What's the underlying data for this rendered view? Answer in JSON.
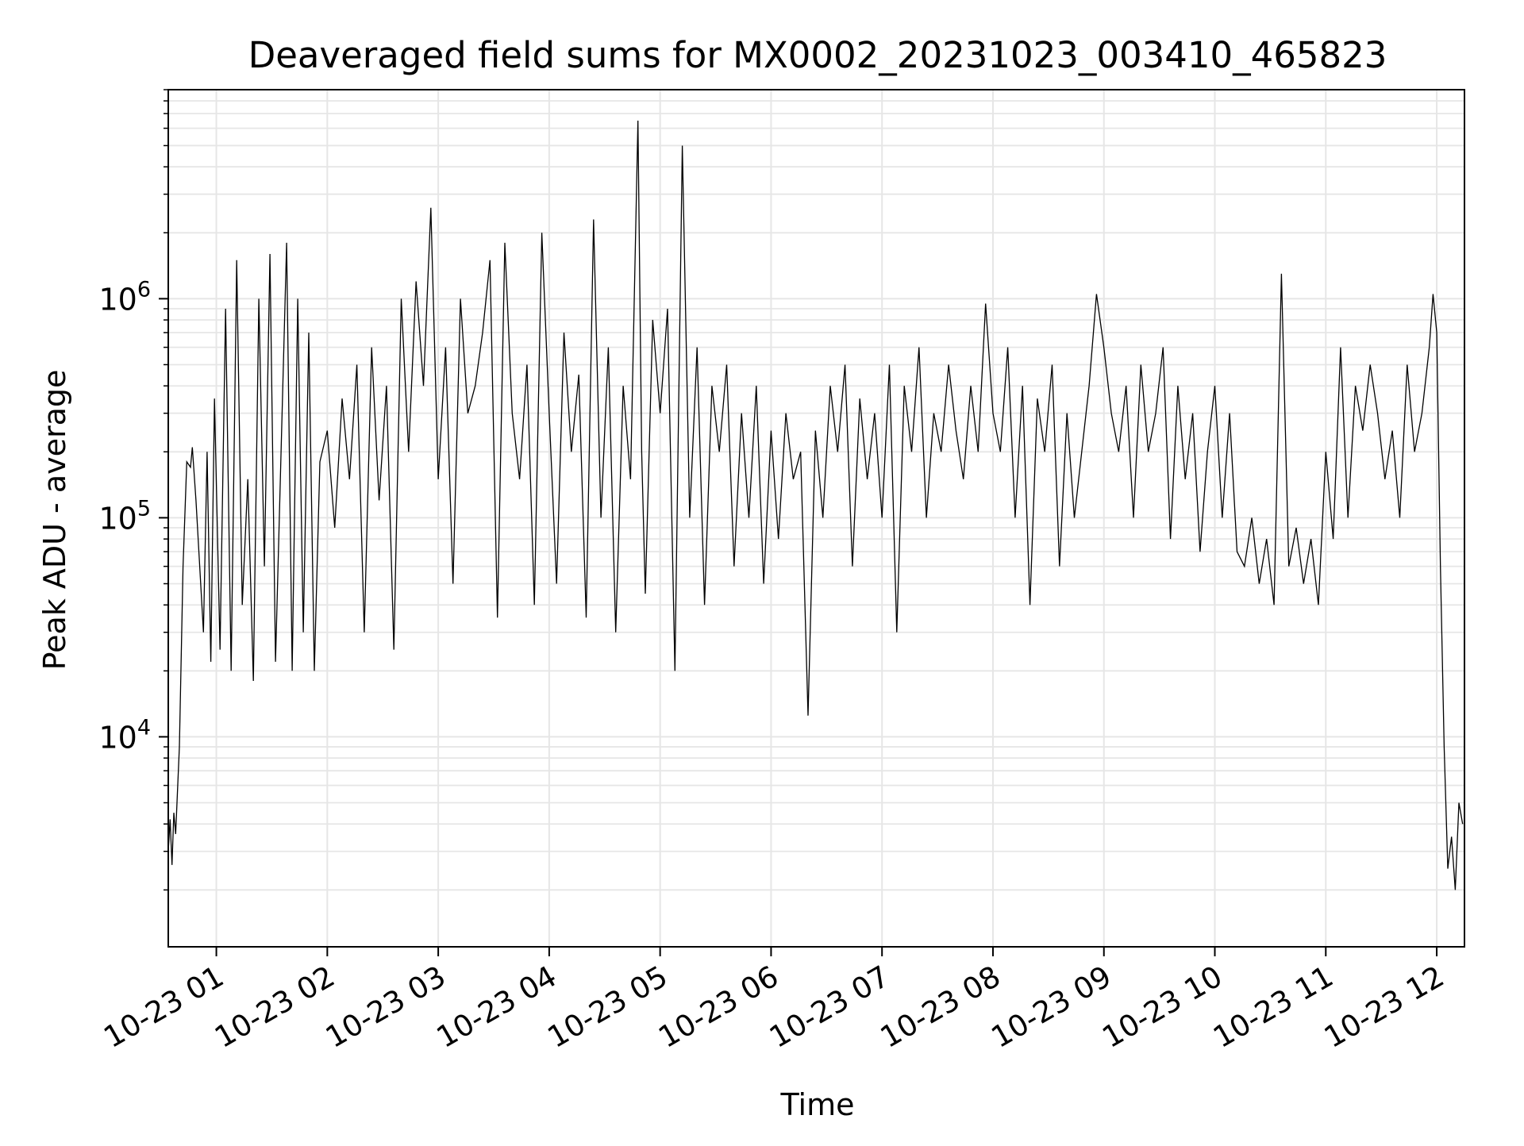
{
  "chart_data": {
    "type": "line",
    "title": "Deaveraged field sums for MX0002_20231023_003410_465823",
    "xlabel": "Time",
    "ylabel": "Peak ADU - average",
    "yscale": "log",
    "ylim": [
      1100,
      9000000
    ],
    "xlim": [
      "2023-10-23T00:34:00",
      "2023-10-23T12:15:00"
    ],
    "grid": true,
    "line_color": "#000000",
    "grid_color": "#e6e6e6",
    "x_ticks": [
      {
        "value": "2023-10-23T01:00:00",
        "label": "10-23 01"
      },
      {
        "value": "2023-10-23T02:00:00",
        "label": "10-23 02"
      },
      {
        "value": "2023-10-23T03:00:00",
        "label": "10-23 03"
      },
      {
        "value": "2023-10-23T04:00:00",
        "label": "10-23 04"
      },
      {
        "value": "2023-10-23T05:00:00",
        "label": "10-23 05"
      },
      {
        "value": "2023-10-23T06:00:00",
        "label": "10-23 06"
      },
      {
        "value": "2023-10-23T07:00:00",
        "label": "10-23 07"
      },
      {
        "value": "2023-10-23T08:00:00",
        "label": "10-23 08"
      },
      {
        "value": "2023-10-23T09:00:00",
        "label": "10-23 09"
      },
      {
        "value": "2023-10-23T10:00:00",
        "label": "10-23 10"
      },
      {
        "value": "2023-10-23T11:00:00",
        "label": "10-23 11"
      },
      {
        "value": "2023-10-23T12:00:00",
        "label": "10-23 12"
      }
    ],
    "y_ticks": [
      {
        "value": 10000,
        "base": "10",
        "exp": "4"
      },
      {
        "value": 100000,
        "base": "10",
        "exp": "5"
      },
      {
        "value": 1000000,
        "base": "10",
        "exp": "6"
      }
    ],
    "series": [
      {
        "x": [
          "2023-10-23T00:34:00",
          "2023-10-23T00:35:00",
          "2023-10-23T00:36:00",
          "2023-10-23T00:37:00",
          "2023-10-23T00:38:00",
          "2023-10-23T00:40:00",
          "2023-10-23T00:42:00",
          "2023-10-23T00:44:00",
          "2023-10-23T00:46:00",
          "2023-10-23T00:47:00",
          "2023-10-23T00:49:00",
          "2023-10-23T00:51:00",
          "2023-10-23T00:53:00",
          "2023-10-23T00:55:00",
          "2023-10-23T00:57:00",
          "2023-10-23T00:59:00",
          "2023-10-23T01:02:00",
          "2023-10-23T01:05:00",
          "2023-10-23T01:08:00",
          "2023-10-23T01:11:00",
          "2023-10-23T01:14:00",
          "2023-10-23T01:17:00",
          "2023-10-23T01:20:00",
          "2023-10-23T01:23:00",
          "2023-10-23T01:26:00",
          "2023-10-23T01:29:00",
          "2023-10-23T01:32:00",
          "2023-10-23T01:35:00",
          "2023-10-23T01:38:00",
          "2023-10-23T01:41:00",
          "2023-10-23T01:44:00",
          "2023-10-23T01:47:00",
          "2023-10-23T01:50:00",
          "2023-10-23T01:53:00",
          "2023-10-23T01:56:00",
          "2023-10-23T02:00:00",
          "2023-10-23T02:04:00",
          "2023-10-23T02:08:00",
          "2023-10-23T02:12:00",
          "2023-10-23T02:16:00",
          "2023-10-23T02:20:00",
          "2023-10-23T02:24:00",
          "2023-10-23T02:28:00",
          "2023-10-23T02:32:00",
          "2023-10-23T02:36:00",
          "2023-10-23T02:40:00",
          "2023-10-23T02:44:00",
          "2023-10-23T02:48:00",
          "2023-10-23T02:52:00",
          "2023-10-23T02:56:00",
          "2023-10-23T03:00:00",
          "2023-10-23T03:04:00",
          "2023-10-23T03:08:00",
          "2023-10-23T03:12:00",
          "2023-10-23T03:16:00",
          "2023-10-23T03:20:00",
          "2023-10-23T03:24:00",
          "2023-10-23T03:28:00",
          "2023-10-23T03:32:00",
          "2023-10-23T03:36:00",
          "2023-10-23T03:40:00",
          "2023-10-23T03:44:00",
          "2023-10-23T03:48:00",
          "2023-10-23T03:52:00",
          "2023-10-23T03:56:00",
          "2023-10-23T04:00:00",
          "2023-10-23T04:04:00",
          "2023-10-23T04:08:00",
          "2023-10-23T04:12:00",
          "2023-10-23T04:16:00",
          "2023-10-23T04:20:00",
          "2023-10-23T04:24:00",
          "2023-10-23T04:28:00",
          "2023-10-23T04:32:00",
          "2023-10-23T04:36:00",
          "2023-10-23T04:40:00",
          "2023-10-23T04:44:00",
          "2023-10-23T04:48:00",
          "2023-10-23T04:50:00",
          "2023-10-23T04:52:00",
          "2023-10-23T04:56:00",
          "2023-10-23T05:00:00",
          "2023-10-23T05:04:00",
          "2023-10-23T05:08:00",
          "2023-10-23T05:12:00",
          "2023-10-23T05:16:00",
          "2023-10-23T05:20:00",
          "2023-10-23T05:24:00",
          "2023-10-23T05:28:00",
          "2023-10-23T05:32:00",
          "2023-10-23T05:36:00",
          "2023-10-23T05:40:00",
          "2023-10-23T05:44:00",
          "2023-10-23T05:48:00",
          "2023-10-23T05:52:00",
          "2023-10-23T05:56:00",
          "2023-10-23T06:00:00",
          "2023-10-23T06:04:00",
          "2023-10-23T06:08:00",
          "2023-10-23T06:12:00",
          "2023-10-23T06:16:00",
          "2023-10-23T06:20:00",
          "2023-10-23T06:24:00",
          "2023-10-23T06:28:00",
          "2023-10-23T06:32:00",
          "2023-10-23T06:36:00",
          "2023-10-23T06:40:00",
          "2023-10-23T06:44:00",
          "2023-10-23T06:48:00",
          "2023-10-23T06:52:00",
          "2023-10-23T06:56:00",
          "2023-10-23T07:00:00",
          "2023-10-23T07:04:00",
          "2023-10-23T07:08:00",
          "2023-10-23T07:12:00",
          "2023-10-23T07:16:00",
          "2023-10-23T07:20:00",
          "2023-10-23T07:24:00",
          "2023-10-23T07:28:00",
          "2023-10-23T07:32:00",
          "2023-10-23T07:36:00",
          "2023-10-23T07:40:00",
          "2023-10-23T07:44:00",
          "2023-10-23T07:48:00",
          "2023-10-23T07:52:00",
          "2023-10-23T07:56:00",
          "2023-10-23T08:00:00",
          "2023-10-23T08:04:00",
          "2023-10-23T08:08:00",
          "2023-10-23T08:12:00",
          "2023-10-23T08:16:00",
          "2023-10-23T08:20:00",
          "2023-10-23T08:24:00",
          "2023-10-23T08:28:00",
          "2023-10-23T08:32:00",
          "2023-10-23T08:36:00",
          "2023-10-23T08:40:00",
          "2023-10-23T08:44:00",
          "2023-10-23T08:48:00",
          "2023-10-23T08:52:00",
          "2023-10-23T08:56:00",
          "2023-10-23T09:00:00",
          "2023-10-23T09:04:00",
          "2023-10-23T09:08:00",
          "2023-10-23T09:12:00",
          "2023-10-23T09:16:00",
          "2023-10-23T09:20:00",
          "2023-10-23T09:24:00",
          "2023-10-23T09:28:00",
          "2023-10-23T09:32:00",
          "2023-10-23T09:36:00",
          "2023-10-23T09:40:00",
          "2023-10-23T09:44:00",
          "2023-10-23T09:48:00",
          "2023-10-23T09:52:00",
          "2023-10-23T09:56:00",
          "2023-10-23T10:00:00",
          "2023-10-23T10:04:00",
          "2023-10-23T10:08:00",
          "2023-10-23T10:12:00",
          "2023-10-23T10:16:00",
          "2023-10-23T10:20:00",
          "2023-10-23T10:24:00",
          "2023-10-23T10:28:00",
          "2023-10-23T10:32:00",
          "2023-10-23T10:36:00",
          "2023-10-23T10:40:00",
          "2023-10-23T10:44:00",
          "2023-10-23T10:48:00",
          "2023-10-23T10:52:00",
          "2023-10-23T10:56:00",
          "2023-10-23T11:00:00",
          "2023-10-23T11:04:00",
          "2023-10-23T11:08:00",
          "2023-10-23T11:12:00",
          "2023-10-23T11:16:00",
          "2023-10-23T11:20:00",
          "2023-10-23T11:24:00",
          "2023-10-23T11:28:00",
          "2023-10-23T11:32:00",
          "2023-10-23T11:36:00",
          "2023-10-23T11:40:00",
          "2023-10-23T11:44:00",
          "2023-10-23T11:48:00",
          "2023-10-23T11:52:00",
          "2023-10-23T11:56:00",
          "2023-10-23T11:58:00",
          "2023-10-23T12:00:00",
          "2023-10-23T12:02:00",
          "2023-10-23T12:04:00",
          "2023-10-23T12:06:00",
          "2023-10-23T12:08:00",
          "2023-10-23T12:10:00",
          "2023-10-23T12:12:00",
          "2023-10-23T12:14:00"
        ],
        "y": [
          3000,
          4200,
          2600,
          4500,
          3600,
          9000,
          60000,
          180000,
          170000,
          210000,
          120000,
          60000,
          30000,
          200000,
          22000,
          350000,
          25000,
          900000,
          20000,
          1500000,
          40000,
          150000,
          18000,
          1000000,
          60000,
          1600000,
          22000,
          200000,
          1800000,
          20000,
          1000000,
          30000,
          700000,
          20000,
          180000,
          250000,
          90000,
          350000,
          150000,
          500000,
          30000,
          600000,
          120000,
          400000,
          25000,
          1000000,
          200000,
          1200000,
          400000,
          2600000,
          150000,
          600000,
          50000,
          1000000,
          300000,
          400000,
          700000,
          1500000,
          35000,
          1800000,
          300000,
          150000,
          500000,
          40000,
          2000000,
          300000,
          50000,
          700000,
          200000,
          450000,
          35000,
          2300000,
          100000,
          600000,
          30000,
          400000,
          150000,
          6500000,
          200000,
          45000,
          800000,
          300000,
          900000,
          20000,
          5000000,
          100000,
          600000,
          40000,
          400000,
          200000,
          500000,
          60000,
          300000,
          100000,
          400000,
          50000,
          250000,
          80000,
          300000,
          150000,
          200000,
          12500,
          250000,
          100000,
          400000,
          200000,
          500000,
          60000,
          350000,
          150000,
          300000,
          100000,
          500000,
          30000,
          400000,
          200000,
          600000,
          100000,
          300000,
          200000,
          500000,
          250000,
          150000,
          400000,
          200000,
          950000,
          300000,
          200000,
          600000,
          100000,
          400000,
          40000,
          350000,
          200000,
          500000,
          60000,
          300000,
          100000,
          200000,
          400000,
          1050000,
          600000,
          300000,
          200000,
          400000,
          100000,
          500000,
          200000,
          300000,
          600000,
          80000,
          400000,
          150000,
          300000,
          70000,
          200000,
          400000,
          100000,
          300000,
          70000,
          60000,
          100000,
          50000,
          80000,
          40000,
          1300000,
          60000,
          90000,
          50000,
          80000,
          40000,
          200000,
          80000,
          600000,
          100000,
          400000,
          250000,
          500000,
          300000,
          150000,
          250000,
          100000,
          500000,
          200000,
          300000,
          600000,
          1050000,
          700000,
          60000,
          9000,
          2500,
          3500,
          2000,
          5000,
          4000
        ]
      }
    ]
  }
}
